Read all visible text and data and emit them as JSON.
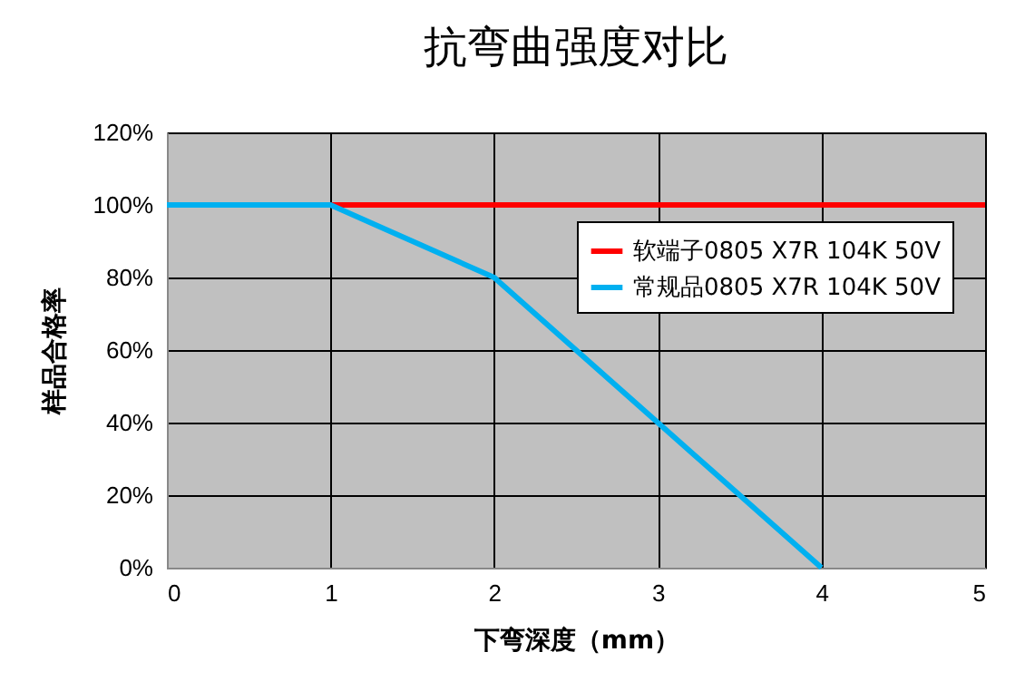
{
  "chart_data": {
    "type": "line",
    "title": "抗弯曲强度对比",
    "xlabel": "下弯深度（mm）",
    "ylabel": "样品合格率",
    "x": [
      0,
      1,
      2,
      3,
      4,
      5
    ],
    "series": [
      {
        "name": "软端子0805 X7R 104K 50V",
        "color": "#ff0000",
        "values": [
          null,
          100,
          100,
          100,
          100,
          100
        ]
      },
      {
        "name": "常规品0805 X7R 104K 50V",
        "color": "#00b0f0",
        "values": [
          100,
          100,
          80,
          40,
          0,
          null
        ]
      }
    ],
    "xlim": [
      0,
      5
    ],
    "xticks": [
      0,
      1,
      2,
      3,
      4,
      5
    ],
    "ylim": [
      0,
      120
    ],
    "yticks": [
      {
        "value": 0,
        "label": "0%"
      },
      {
        "value": 20,
        "label": "20%"
      },
      {
        "value": 40,
        "label": "40%"
      },
      {
        "value": 60,
        "label": "60%"
      },
      {
        "value": 80,
        "label": "80%"
      },
      {
        "value": 100,
        "label": "100%"
      },
      {
        "value": 120,
        "label": "120%"
      }
    ],
    "grid": true,
    "legend": "top right",
    "marker": "none",
    "line_style": "solid"
  }
}
